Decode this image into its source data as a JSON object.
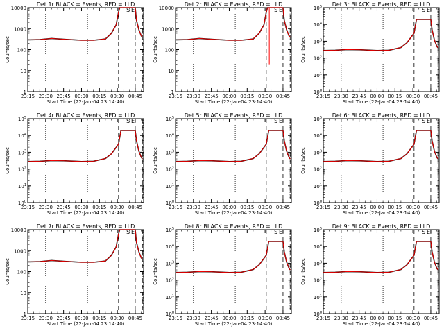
{
  "colors": {
    "events": "#000000",
    "lld": "#ff0000",
    "background": "#ffffff",
    "axes": "#000000"
  },
  "x_axis": {
    "label": "Start Time (22-Jan-04 23:14:40)",
    "ticks": [
      "23:15",
      "23:30",
      "23:45",
      "00:00",
      "00:15",
      "00:30",
      "00:45"
    ],
    "range_minutes": [
      0,
      97
    ]
  },
  "y_axis_label": "Counts/sec",
  "markers": {
    "dotted_minutes": [
      15,
      50
    ],
    "dashed_minutes": [
      76,
      90,
      96
    ],
    "annotation_minutes": [
      84,
      88
    ],
    "annotation_labels": [
      "S",
      "E"
    ]
  },
  "chart_data": [
    {
      "type": "line",
      "title": "Det 1r BLACK = Events, RED = LLD",
      "scale": "linear-labels",
      "yticks": [
        "1",
        "10",
        "100",
        "1000",
        "10000"
      ],
      "ylim": [
        1,
        10000
      ],
      "series": [
        {
          "name": "Events"
        },
        {
          "name": "LLD"
        }
      ],
      "x": [
        0,
        10,
        20,
        30,
        45,
        55,
        65,
        70,
        74,
        76,
        77,
        78,
        90,
        91,
        93,
        95,
        96
      ],
      "values": [
        290,
        300,
        340,
        310,
        280,
        280,
        320,
        600,
        1500,
        6000,
        10000,
        10000,
        10000,
        2500,
        900,
        450,
        400
      ],
      "dropout": null
    },
    {
      "type": "line",
      "title": "Det 2r BLACK = Events, RED = LLD",
      "scale": "linear-labels",
      "yticks": [
        "1",
        "10",
        "100",
        "1000",
        "10000"
      ],
      "ylim": [
        1,
        10000
      ],
      "series": [
        {
          "name": "Events"
        },
        {
          "name": "LLD"
        }
      ],
      "x": [
        0,
        10,
        20,
        30,
        45,
        55,
        65,
        70,
        74,
        76,
        77,
        78,
        90,
        91,
        93,
        95,
        96
      ],
      "values": [
        290,
        300,
        340,
        310,
        280,
        280,
        320,
        600,
        1500,
        6000,
        10000,
        10000,
        10000,
        2500,
        900,
        450,
        400
      ],
      "dropout": {
        "x": 78.5,
        "y": 20
      }
    },
    {
      "type": "line",
      "title": "Det 3r BLACK = Events, RED = LLD",
      "scale": "power",
      "yticks": [
        "10^0",
        "10^1",
        "10^2",
        "10^3",
        "10^4",
        "10^5"
      ],
      "ylim": [
        1,
        100000
      ],
      "series": [
        {
          "name": "Events"
        },
        {
          "name": "LLD"
        }
      ],
      "x": [
        0,
        10,
        20,
        30,
        45,
        55,
        65,
        70,
        76,
        78,
        90,
        91,
        93,
        95,
        96
      ],
      "values": [
        280,
        290,
        320,
        310,
        280,
        290,
        420,
        800,
        3000,
        20000,
        20000,
        5000,
        1200,
        500,
        400
      ],
      "dropout": null
    },
    {
      "type": "line",
      "title": "Det 4r BLACK = Events, RED = LLD",
      "scale": "power",
      "yticks": [
        "10^0",
        "10^1",
        "10^2",
        "10^3",
        "10^4",
        "10^5"
      ],
      "ylim": [
        1,
        100000
      ],
      "series": [
        {
          "name": "Events"
        },
        {
          "name": "LLD"
        }
      ],
      "x": [
        0,
        10,
        20,
        30,
        45,
        55,
        65,
        70,
        76,
        78,
        90,
        91,
        93,
        95,
        96
      ],
      "values": [
        280,
        290,
        320,
        310,
        280,
        290,
        420,
        800,
        3000,
        20000,
        20000,
        5000,
        1200,
        500,
        400
      ],
      "dropout": null
    },
    {
      "type": "line",
      "title": "Det 5r BLACK = Events, RED = LLD",
      "scale": "power",
      "yticks": [
        "10^0",
        "10^1",
        "10^2",
        "10^3",
        "10^4",
        "10^5"
      ],
      "ylim": [
        1,
        100000
      ],
      "series": [
        {
          "name": "Events"
        },
        {
          "name": "LLD"
        }
      ],
      "x": [
        0,
        10,
        20,
        30,
        45,
        55,
        65,
        70,
        76,
        78,
        90,
        91,
        93,
        95,
        96
      ],
      "values": [
        280,
        290,
        320,
        310,
        280,
        290,
        420,
        800,
        3000,
        20000,
        20000,
        5000,
        1200,
        500,
        400
      ],
      "dropout": null
    },
    {
      "type": "line",
      "title": "Det 6r BLACK = Events, RED = LLD",
      "scale": "power",
      "yticks": [
        "10^0",
        "10^1",
        "10^2",
        "10^3",
        "10^4",
        "10^5"
      ],
      "ylim": [
        1,
        100000
      ],
      "series": [
        {
          "name": "Events"
        },
        {
          "name": "LLD"
        }
      ],
      "x": [
        0,
        10,
        20,
        30,
        45,
        55,
        65,
        70,
        76,
        78,
        90,
        91,
        93,
        95,
        96
      ],
      "values": [
        280,
        290,
        320,
        310,
        280,
        290,
        420,
        800,
        3000,
        20000,
        20000,
        5000,
        1200,
        500,
        400
      ],
      "dropout": null
    },
    {
      "type": "line",
      "title": "Det 7r BLACK = Events, RED = LLD",
      "scale": "linear-labels",
      "yticks": [
        "1",
        "10",
        "100",
        "1000",
        "10000"
      ],
      "ylim": [
        1,
        10000
      ],
      "series": [
        {
          "name": "Events"
        },
        {
          "name": "LLD"
        }
      ],
      "x": [
        0,
        10,
        20,
        30,
        45,
        55,
        65,
        70,
        74,
        76,
        77,
        78,
        90,
        91,
        93,
        95,
        96
      ],
      "values": [
        290,
        300,
        340,
        310,
        280,
        280,
        320,
        600,
        1500,
        6000,
        10000,
        10000,
        10000,
        2500,
        900,
        450,
        400
      ],
      "dropout": null
    },
    {
      "type": "line",
      "title": "Det 8r BLACK = Events, RED = LLD",
      "scale": "power",
      "yticks": [
        "10^0",
        "10^1",
        "10^2",
        "10^3",
        "10^4",
        "10^5"
      ],
      "ylim": [
        1,
        100000
      ],
      "series": [
        {
          "name": "Events"
        },
        {
          "name": "LLD"
        }
      ],
      "x": [
        0,
        10,
        20,
        30,
        45,
        55,
        65,
        70,
        76,
        78,
        90,
        91,
        93,
        95,
        96
      ],
      "values": [
        280,
        290,
        320,
        310,
        280,
        290,
        420,
        800,
        3000,
        20000,
        20000,
        5000,
        1200,
        500,
        400
      ],
      "dropout": null
    },
    {
      "type": "line",
      "title": "Det 9r BLACK = Events, RED = LLD",
      "scale": "power",
      "yticks": [
        "10^0",
        "10^1",
        "10^2",
        "10^3",
        "10^4",
        "10^5"
      ],
      "ylim": [
        1,
        100000
      ],
      "series": [
        {
          "name": "Events"
        },
        {
          "name": "LLD"
        }
      ],
      "x": [
        0,
        10,
        20,
        30,
        45,
        55,
        65,
        70,
        76,
        78,
        90,
        91,
        93,
        95,
        96
      ],
      "values": [
        280,
        290,
        320,
        310,
        280,
        290,
        420,
        800,
        3000,
        20000,
        20000,
        5000,
        1200,
        500,
        400
      ],
      "dropout": null
    }
  ]
}
